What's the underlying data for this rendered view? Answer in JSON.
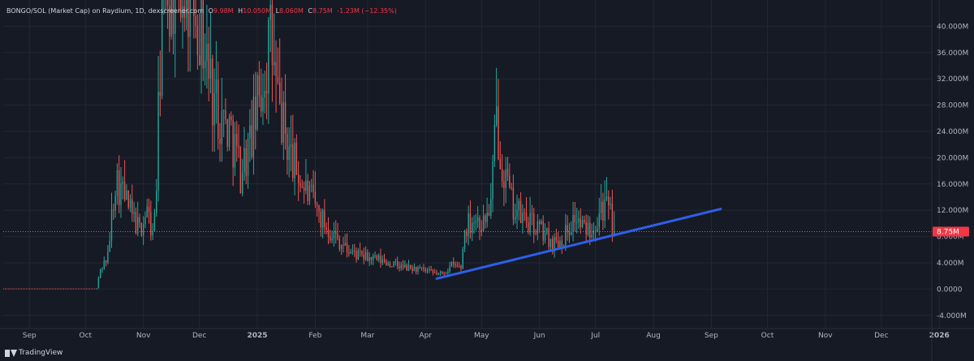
{
  "header": {
    "symbol_line": "BONGO/SOL (Market Cap) on Raydium, 1D, dexscreener.com",
    "o_label": "O",
    "o": "9.98M",
    "h_label": "H",
    "h": "10.050M",
    "l_label": "L",
    "l": "8.060M",
    "c_label": "C",
    "c": "8.75M",
    "change": "-1.23M (−12.35%)"
  },
  "colors": {
    "background": "#161a25",
    "grid": "#232733",
    "up": "#26a69a",
    "down": "#ef5350",
    "trendline": "#2f5fe8",
    "price_label_bg": "#f23645",
    "axis_text": "#b2b5be"
  },
  "chart_data": {
    "type": "candlestick",
    "title": "",
    "xlabel": "",
    "ylabel": "",
    "ylim": [
      -6,
      44
    ],
    "y_ticks": [
      -4,
      0,
      4,
      8,
      12,
      16,
      20,
      24,
      28,
      32,
      36,
      40
    ],
    "y_tick_labels": [
      "-4.000M",
      "0.0000",
      "4.000M",
      "8.000M",
      "12.000M",
      "16.000M",
      "20.000M",
      "24.000M",
      "28.000M",
      "32.000M",
      "36.000M",
      "40.000M"
    ],
    "x_range": [
      "2024-08-18",
      "2025-12-28"
    ],
    "x_ticks": [
      "2024-09-01",
      "2024-10-01",
      "2024-11-01",
      "2024-12-01",
      "2025-01-01",
      "2025-02-01",
      "2025-03-01",
      "2025-04-01",
      "2025-05-01",
      "2025-06-01",
      "2025-07-01",
      "2025-08-01",
      "2025-09-01",
      "2025-10-01",
      "2025-11-01",
      "2025-12-01",
      "2026-01-01"
    ],
    "x_tick_labels": [
      "Sep",
      "Oct",
      "Nov",
      "Dec",
      "2025",
      "Feb",
      "Mar",
      "Apr",
      "May",
      "Jun",
      "Jul",
      "Aug",
      "Sep",
      "Oct",
      "Nov",
      "Dec",
      "2026"
    ],
    "flat_segment": {
      "from": "2024-08-18",
      "to": "2024-10-07",
      "value": 0.05
    },
    "trend_anchors": [
      [
        "2024-10-07",
        0.1
      ],
      [
        "2024-10-09",
        3
      ],
      [
        "2024-10-13",
        5
      ],
      [
        "2024-10-17",
        17
      ],
      [
        "2024-10-22",
        14
      ],
      [
        "2024-10-26",
        11
      ],
      [
        "2024-10-30",
        9
      ],
      [
        "2024-11-03",
        12
      ],
      [
        "2024-11-06",
        8
      ],
      [
        "2024-11-08",
        16
      ],
      [
        "2024-11-11",
        44
      ],
      [
        "2024-11-14",
        46
      ],
      [
        "2024-11-28",
        46
      ],
      [
        "2024-12-03",
        38
      ],
      [
        "2024-12-08",
        30
      ],
      [
        "2024-12-13",
        26
      ],
      [
        "2024-12-18",
        24
      ],
      [
        "2024-12-23",
        18
      ],
      [
        "2024-12-28",
        22
      ],
      [
        "2025-01-04",
        32
      ],
      [
        "2025-01-08",
        38
      ],
      [
        "2025-01-12",
        28
      ],
      [
        "2025-01-18",
        21
      ],
      [
        "2025-01-25",
        16
      ],
      [
        "2025-01-31",
        13
      ],
      [
        "2025-02-06",
        10
      ],
      [
        "2025-02-12",
        8
      ],
      [
        "2025-02-18",
        6
      ],
      [
        "2025-02-25",
        5
      ],
      [
        "2025-03-05",
        4.5
      ],
      [
        "2025-03-12",
        4
      ],
      [
        "2025-03-20",
        3.3
      ],
      [
        "2025-03-28",
        3
      ],
      [
        "2025-04-05",
        2.4
      ],
      [
        "2025-04-10",
        2.3
      ],
      [
        "2025-04-15",
        3.6
      ],
      [
        "2025-04-20",
        3.3
      ],
      [
        "2025-04-22",
        9
      ],
      [
        "2025-04-26",
        11
      ],
      [
        "2025-05-02",
        10
      ],
      [
        "2025-05-06",
        13
      ],
      [
        "2025-05-09",
        26
      ],
      [
        "2025-05-13",
        18
      ],
      [
        "2025-05-17",
        13
      ],
      [
        "2025-05-22",
        11
      ],
      [
        "2025-05-27",
        10
      ],
      [
        "2025-06-02",
        9
      ],
      [
        "2025-06-08",
        7
      ],
      [
        "2025-06-14",
        8
      ],
      [
        "2025-06-20",
        11
      ],
      [
        "2025-06-25",
        9
      ],
      [
        "2025-06-30",
        10
      ],
      [
        "2025-07-04",
        13
      ],
      [
        "2025-07-07",
        12
      ],
      [
        "2025-07-09",
        11
      ],
      [
        "2025-07-11",
        8.75
      ]
    ],
    "trendline": {
      "start": [
        "2025-04-07",
        1.6
      ],
      "end": [
        "2025-09-06",
        12.2
      ]
    },
    "last_price": 8.75,
    "last_price_label": "8.75M",
    "legend": "none",
    "grid": true
  },
  "footer": {
    "brand": "TradingView"
  }
}
